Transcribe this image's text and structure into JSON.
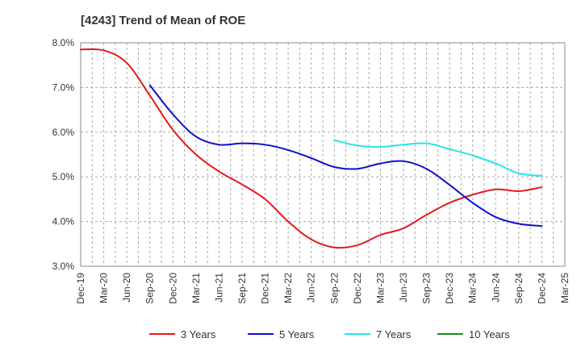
{
  "chart_data": {
    "type": "line",
    "title": "[4243]  Trend of Mean of ROE",
    "xlabel": "",
    "ylabel": "",
    "x_ticks": [
      "Dec-19",
      "Mar-20",
      "Jun-20",
      "Sep-20",
      "Dec-20",
      "Mar-21",
      "Jun-21",
      "Sep-21",
      "Dec-21",
      "Mar-22",
      "Jun-22",
      "Sep-22",
      "Dec-22",
      "Mar-23",
      "Jun-23",
      "Sep-23",
      "Dec-23",
      "Mar-24",
      "Jun-24",
      "Sep-24",
      "Dec-24",
      "Mar-25"
    ],
    "y_ticks": [
      "3.0%",
      "4.0%",
      "5.0%",
      "6.0%",
      "7.0%",
      "8.0%"
    ],
    "ylim": [
      3.0,
      8.0
    ],
    "grid": true,
    "legend_position": "bottom",
    "series": [
      {
        "name": "3 Years",
        "color": "#e31a1c",
        "x": [
          "Dec-19",
          "Mar-20",
          "Jun-20",
          "Sep-20",
          "Dec-20",
          "Mar-21",
          "Jun-21",
          "Sep-21",
          "Dec-21",
          "Mar-22",
          "Jun-22",
          "Sep-22",
          "Dec-22",
          "Mar-23",
          "Jun-23",
          "Sep-23",
          "Dec-23",
          "Mar-24",
          "Jun-24",
          "Sep-24",
          "Dec-24"
        ],
        "values": [
          7.85,
          7.83,
          7.55,
          6.82,
          6.05,
          5.5,
          5.12,
          4.83,
          4.5,
          4.0,
          3.6,
          3.42,
          3.47,
          3.7,
          3.85,
          4.15,
          4.42,
          4.6,
          4.72,
          4.68,
          4.77
        ]
      },
      {
        "name": "5 Years",
        "color": "#1010c8",
        "x": [
          "Sep-20",
          "Dec-20",
          "Mar-21",
          "Jun-21",
          "Sep-21",
          "Dec-21",
          "Mar-22",
          "Jun-22",
          "Sep-22",
          "Dec-22",
          "Mar-23",
          "Jun-23",
          "Sep-23",
          "Dec-23",
          "Mar-24",
          "Jun-24",
          "Sep-24",
          "Dec-24"
        ],
        "values": [
          7.05,
          6.4,
          5.9,
          5.72,
          5.75,
          5.72,
          5.6,
          5.42,
          5.22,
          5.18,
          5.3,
          5.35,
          5.18,
          4.82,
          4.42,
          4.1,
          3.95,
          3.9
        ]
      },
      {
        "name": "7 Years",
        "color": "#26e5e5",
        "x": [
          "Sep-22",
          "Dec-22",
          "Mar-23",
          "Jun-23",
          "Sep-23",
          "Dec-23",
          "Mar-24",
          "Jun-24",
          "Sep-24",
          "Dec-24"
        ],
        "values": [
          5.82,
          5.7,
          5.67,
          5.72,
          5.75,
          5.62,
          5.48,
          5.3,
          5.08,
          5.02
        ]
      },
      {
        "name": "10 Years",
        "color": "#228b22",
        "x": [],
        "values": []
      }
    ]
  }
}
